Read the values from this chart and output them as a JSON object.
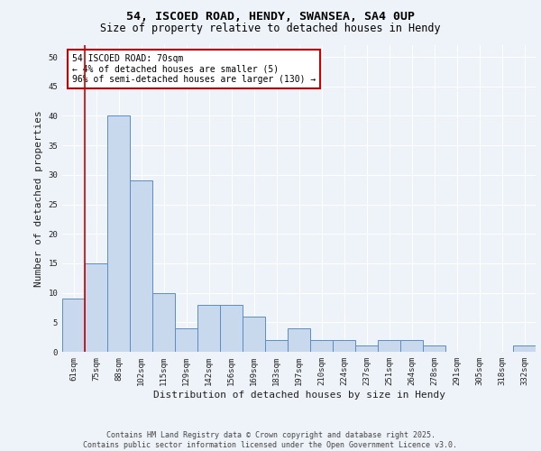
{
  "title_line1": "54, ISCOED ROAD, HENDY, SWANSEA, SA4 0UP",
  "title_line2": "Size of property relative to detached houses in Hendy",
  "xlabel": "Distribution of detached houses by size in Hendy",
  "ylabel": "Number of detached properties",
  "categories": [
    "61sqm",
    "75sqm",
    "88sqm",
    "102sqm",
    "115sqm",
    "129sqm",
    "142sqm",
    "156sqm",
    "169sqm",
    "183sqm",
    "197sqm",
    "210sqm",
    "224sqm",
    "237sqm",
    "251sqm",
    "264sqm",
    "278sqm",
    "291sqm",
    "305sqm",
    "318sqm",
    "332sqm"
  ],
  "values": [
    9,
    15,
    40,
    29,
    10,
    4,
    8,
    8,
    6,
    2,
    4,
    2,
    2,
    1,
    2,
    2,
    1,
    0,
    0,
    0,
    1
  ],
  "bar_color": "#c9d9ed",
  "bar_edge_color": "#5b8dc4",
  "annotation_text": "54 ISCOED ROAD: 70sqm\n← 4% of detached houses are smaller (5)\n96% of semi-detached houses are larger (130) →",
  "annotation_box_color": "#ffffff",
  "annotation_box_edge_color": "#cc0000",
  "vline_color": "#cc0000",
  "background_color": "#eef2f9",
  "plot_bg_color": "#eef2f9",
  "grid_color": "#ffffff",
  "ylim": [
    0,
    52
  ],
  "yticks": [
    0,
    5,
    10,
    15,
    20,
    25,
    30,
    35,
    40,
    45,
    50
  ],
  "footer_line1": "Contains HM Land Registry data © Crown copyright and database right 2025.",
  "footer_line2": "Contains public sector information licensed under the Open Government Licence v3.0.",
  "title_fontsize": 9.5,
  "subtitle_fontsize": 8.5,
  "tick_fontsize": 6.5,
  "ylabel_fontsize": 8,
  "xlabel_fontsize": 8,
  "footer_fontsize": 6,
  "annotation_fontsize": 7
}
